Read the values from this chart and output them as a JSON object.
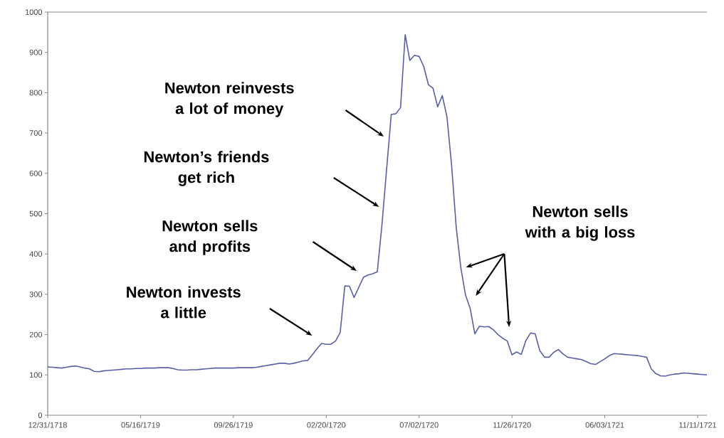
{
  "chart_data": {
    "type": "line",
    "color": "#5b5ea6",
    "categories": [
      "12/31/1718",
      null,
      null,
      null,
      null,
      null,
      null,
      null,
      null,
      null,
      null,
      null,
      null,
      null,
      null,
      null,
      null,
      null,
      null,
      null,
      "05/16/1719",
      null,
      null,
      null,
      null,
      null,
      null,
      null,
      null,
      null,
      null,
      null,
      null,
      null,
      null,
      null,
      null,
      null,
      null,
      null,
      "09/26/1719",
      null,
      null,
      null,
      null,
      null,
      null,
      null,
      null,
      null,
      null,
      null,
      null,
      null,
      null,
      null,
      null,
      null,
      null,
      null,
      "02/20/1720",
      null,
      null,
      null,
      null,
      null,
      null,
      null,
      null,
      null,
      null,
      null,
      null,
      null,
      null,
      null,
      null,
      null,
      null,
      null,
      "07/02/1720",
      null,
      null,
      null,
      null,
      null,
      null,
      null,
      null,
      null,
      null,
      null,
      null,
      null,
      null,
      null,
      null,
      null,
      null,
      null,
      "11/26/1720",
      null,
      null,
      null,
      null,
      null,
      null,
      null,
      null,
      null,
      null,
      null,
      null,
      null,
      null,
      null,
      null,
      null,
      null,
      null,
      "06/03/1721",
      null,
      null,
      null,
      null,
      null,
      null,
      null,
      null,
      null,
      null,
      null,
      null,
      null,
      null,
      null,
      null,
      null,
      null,
      null,
      "11/11/1721",
      null,
      null
    ],
    "values": [
      120,
      119,
      118,
      117,
      119,
      121,
      122,
      120,
      117,
      115,
      109,
      108,
      110,
      111,
      112,
      113,
      114,
      115,
      115,
      116,
      116,
      117,
      117,
      117,
      118,
      118,
      118,
      116,
      113,
      112,
      112,
      113,
      113,
      114,
      115,
      116,
      117,
      117,
      117,
      117,
      117,
      118,
      118,
      118,
      118,
      119,
      121,
      123,
      125,
      127,
      129,
      129,
      127,
      129,
      132,
      135,
      136,
      150,
      165,
      178,
      176,
      176,
      184,
      205,
      321,
      320,
      292,
      317,
      342,
      348,
      351,
      356,
      473,
      610,
      746,
      748,
      763,
      944,
      880,
      893,
      890,
      865,
      820,
      811,
      765,
      793,
      740,
      620,
      465,
      365,
      298,
      265,
      202,
      221,
      219,
      220,
      212,
      200,
      191,
      184,
      150,
      157,
      151,
      185,
      204,
      202,
      160,
      144,
      144,
      156,
      163,
      152,
      144,
      142,
      140,
      138,
      133,
      128,
      126,
      133,
      140,
      148,
      153,
      152,
      151,
      150,
      149,
      148,
      146,
      144,
      115,
      103,
      98,
      97,
      100,
      102,
      103,
      105,
      104,
      103,
      102,
      101,
      100
    ],
    "ylim": [
      0,
      1000
    ],
    "yticks": [
      0,
      100,
      200,
      300,
      400,
      500,
      600,
      700,
      800,
      900,
      1000
    ],
    "annotations": [
      "Newton invests a little",
      "Newton sells and profits",
      "Newton’s friends get rich",
      "Newton reinvests a lot of money",
      "Newton sells with a big loss"
    ]
  }
}
